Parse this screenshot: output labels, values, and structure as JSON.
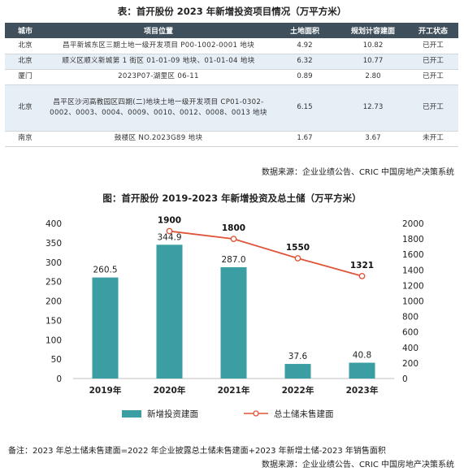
{
  "table": {
    "title": "表：首开股份 2023 年新增投资项目情况（万平方米）",
    "headers": [
      "城市",
      "项目位置",
      "土地面积",
      "规划计容建面",
      "开工状态"
    ],
    "rows": [
      {
        "city": "北京",
        "location": "昌平新城东区三期土地一级开发项目 P00-1002-0001 地块",
        "land_area": "4.92",
        "planned_area": "10.82",
        "status": "已开工"
      },
      {
        "city": "北京",
        "location": "顺义区顺义新城第 1 街区 01-01-09 地块、01-01-04 地块",
        "land_area": "6.32",
        "planned_area": "10.77",
        "status": "已开工"
      },
      {
        "city": "厦门",
        "location": "2023P07-湖里区 06-11",
        "land_area": "0.89",
        "planned_area": "2.80",
        "status": "已开工"
      },
      {
        "city": "北京",
        "location": "昌平区沙河高教园区四期(二)地块土地一级开发项目 CP01-0302-0002、0003、0004、0009、0010、0012、0008、0013 地块",
        "land_area": "6.15",
        "planned_area": "12.73",
        "status": "已开工"
      },
      {
        "city": "南京",
        "location": "鼓楼区 NO.2023G89 地块",
        "land_area": "1.67",
        "planned_area": "3.67",
        "status": "未开工"
      }
    ],
    "source": "数据来源：企业业绩公告、CRIC 中国房地产决策系统"
  },
  "chart_data": {
    "type": "bar",
    "title": "图：首开股份 2019-2023 年新增投资及总土储（万平方米）",
    "categories": [
      "2019年",
      "2020年",
      "2021年",
      "2022年",
      "2023年"
    ],
    "series": [
      {
        "name": "新增投资建面",
        "type": "bar",
        "axis": "left",
        "values": [
          260.5,
          344.9,
          287.0,
          37.6,
          40.8
        ],
        "labels": [
          "260.5",
          "344.9",
          "287.0",
          "37.6",
          "40.8"
        ],
        "color": "#3a9ea3"
      },
      {
        "name": "总土储未售建面",
        "type": "line",
        "axis": "right",
        "values": [
          null,
          1900,
          1800,
          1550,
          1321
        ],
        "labels": [
          "",
          "1900",
          "1800",
          "1550",
          "1321"
        ],
        "color": "#e0553a"
      }
    ],
    "ylim_left": [
      0,
      400
    ],
    "yticks_left": [
      0,
      50,
      100,
      150,
      200,
      250,
      300,
      350,
      400
    ],
    "ylim_right": [
      0,
      2000
    ],
    "yticks_right": [
      0,
      200,
      400,
      600,
      800,
      1000,
      1200,
      1400,
      1600,
      1800,
      2000
    ],
    "legend": "bottom",
    "grid": false
  },
  "note": "备注：2023 年总土储未售建面=2022 年企业披露总土储未售建面+2023 年新增土储-2023 年销售面积",
  "chart_source": "数据来源：企业业绩公告、CRIC 中国房地产决策系统"
}
